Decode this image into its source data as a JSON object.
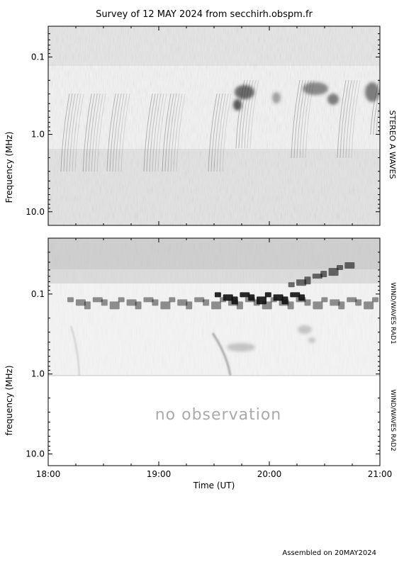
{
  "chart_data": [
    {
      "type": "heatmap",
      "title": "Survey of 12 MAY 2024 from secchirh.obspm.fr",
      "instrument": "STEREO A WAVES",
      "ylabel": "Frequency (MHz)",
      "y_scale": "log",
      "y_inverted": true,
      "ylim": [
        0.04,
        15
      ],
      "y_ticks": [
        0.1,
        1.0,
        10.0
      ],
      "y_tick_labels": [
        "0.1",
        "1.0",
        "10.0"
      ],
      "xlim": [
        "18:00",
        "21:00"
      ],
      "colormap": "grayscale, darker = stronger intensity",
      "features": [
        {
          "kind": "type III burst",
          "time_utc": "18:10",
          "freq_mhz_range": [
            0.3,
            3
          ]
        },
        {
          "kind": "type III burst",
          "time_utc": "18:22",
          "freq_mhz_range": [
            0.3,
            3
          ]
        },
        {
          "kind": "type III burst",
          "time_utc": "18:35",
          "freq_mhz_range": [
            0.3,
            3
          ]
        },
        {
          "kind": "type III burst",
          "time_utc": "18:55",
          "freq_mhz_range": [
            0.3,
            3
          ]
        },
        {
          "kind": "type III burst",
          "time_utc": "19:05",
          "freq_mhz_range": [
            0.3,
            3
          ]
        },
        {
          "kind": "type III burst",
          "time_utc": "19:30",
          "freq_mhz_range": [
            0.3,
            3
          ]
        },
        {
          "kind": "burst group",
          "time_utc": "19:45",
          "freq_mhz_range": [
            0.2,
            1.5
          ]
        },
        {
          "kind": "burst group",
          "time_utc": "20:15",
          "freq_mhz_range": [
            0.2,
            2
          ]
        },
        {
          "kind": "burst group",
          "time_utc": "20:40",
          "freq_mhz_range": [
            0.2,
            2
          ]
        },
        {
          "kind": "burst group",
          "time_utc": "20:58",
          "freq_mhz_range": [
            0.2,
            1
          ]
        }
      ]
    },
    {
      "type": "heatmap",
      "instrument": "WIND/WAVES RAD1",
      "ylabel": "frequency (MHz)",
      "y_scale": "log",
      "y_inverted": true,
      "ylim": [
        0.02,
        1.0
      ],
      "y_ticks": [
        0.1,
        1.0
      ],
      "y_tick_labels": [
        "0.1",
        "1.0"
      ],
      "xlim": [
        "18:00",
        "21:00"
      ],
      "colormap": "grayscale, darker = stronger intensity",
      "features": [
        {
          "kind": "emission band",
          "time_utc_range": [
            "18:10",
            "21:00"
          ],
          "freq_mhz_range": [
            0.08,
            0.2
          ]
        },
        {
          "kind": "strong burst",
          "time_utc_range": [
            "19:30",
            "20:20"
          ],
          "freq_mhz_range": [
            0.06,
            0.2
          ]
        },
        {
          "kind": "drifting emission",
          "time_utc_range": [
            "20:10",
            "20:45"
          ],
          "freq_mhz_range": [
            0.04,
            0.12
          ]
        }
      ]
    },
    {
      "type": "heatmap",
      "instrument": "WIND/WAVES RAD2",
      "ylabel": "frequency (MHz)",
      "y_scale": "log",
      "y_inverted": true,
      "ylim": [
        1.0,
        14
      ],
      "y_ticks": [
        10.0
      ],
      "y_tick_labels": [
        "10.0"
      ],
      "xlim": [
        "18:00",
        "21:00"
      ],
      "status": "no observation"
    }
  ],
  "x_axis": {
    "label": "Time (UT)",
    "ticks": [
      "18:00",
      "19:00",
      "20:00",
      "21:00"
    ]
  },
  "footer": "Assembled on 20MAY2024"
}
